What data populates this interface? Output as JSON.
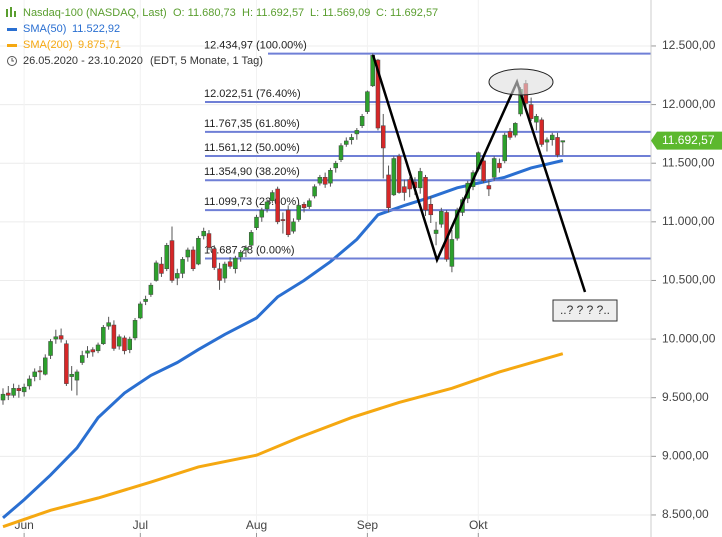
{
  "chart_data": {
    "type": "candlestick",
    "candle_name": "Nasdaq-100 (NASDAQ, Last)",
    "quote": [
      "O: 11.680,73",
      "H: 11.692,57",
      "L: 11.569,09",
      "C: 11.692,57"
    ],
    "period": "26.05.2020 - 23.10.2020",
    "period_note": "(EDT, 5 Monate, 1 Tag)",
    "up_color": "#2ca02c",
    "down_color": "#d62728",
    "x": [
      0,
      1,
      2,
      3,
      4,
      5,
      6,
      7,
      8,
      9,
      10,
      11,
      12,
      13,
      14,
      15,
      16,
      17,
      18,
      19,
      20,
      21,
      22,
      23,
      24,
      25,
      26,
      27,
      28,
      29,
      30,
      31,
      32,
      33,
      34,
      35,
      36,
      37,
      38,
      39,
      40,
      41,
      42,
      43,
      44,
      45,
      46,
      47,
      48,
      49,
      50,
      51,
      52,
      53,
      54,
      55,
      56,
      57,
      58,
      59,
      60,
      61,
      62,
      63,
      64,
      65,
      66,
      67,
      68,
      69,
      70,
      71,
      72,
      73,
      74,
      75,
      76,
      77,
      78,
      79,
      80,
      81,
      82,
      83,
      84,
      85,
      86,
      87,
      88,
      89,
      90,
      91,
      92,
      93,
      94,
      95,
      96,
      97,
      98,
      99,
      100,
      101,
      102,
      103,
      104,
      105,
      106
    ],
    "candles": [
      [
        9480,
        9580,
        9440,
        9530
      ],
      [
        9540,
        9600,
        9480,
        9520
      ],
      [
        9520,
        9620,
        9500,
        9580
      ],
      [
        9580,
        9610,
        9500,
        9560
      ],
      [
        9550,
        9620,
        9510,
        9590
      ],
      [
        9600,
        9690,
        9570,
        9660
      ],
      [
        9680,
        9750,
        9640,
        9720
      ],
      [
        9730,
        9770,
        9650,
        9720
      ],
      [
        9700,
        9870,
        9690,
        9840
      ],
      [
        9860,
        10000,
        9830,
        9980
      ],
      [
        10000,
        10080,
        9960,
        10020
      ],
      [
        10030,
        10090,
        9970,
        10000
      ],
      [
        9960,
        9990,
        9600,
        9620
      ],
      [
        9680,
        9770,
        9560,
        9700
      ],
      [
        9650,
        9740,
        9520,
        9720
      ],
      [
        9800,
        9900,
        9780,
        9860
      ],
      [
        9880,
        9940,
        9840,
        9900
      ],
      [
        9910,
        9930,
        9850,
        9890
      ],
      [
        9900,
        9970,
        9880,
        9950
      ],
      [
        9960,
        10120,
        9950,
        10100
      ],
      [
        10110,
        10190,
        10080,
        10140
      ],
      [
        10120,
        10160,
        9900,
        9920
      ],
      [
        9940,
        10040,
        9910,
        10020
      ],
      [
        10010,
        10030,
        9870,
        9900
      ],
      [
        9910,
        10020,
        9880,
        10000
      ],
      [
        10010,
        10180,
        9990,
        10160
      ],
      [
        10180,
        10320,
        10170,
        10300
      ],
      [
        10320,
        10370,
        10290,
        10340
      ],
      [
        10380,
        10480,
        10360,
        10460
      ],
      [
        10500,
        10670,
        10490,
        10650
      ],
      [
        10640,
        10700,
        10530,
        10560
      ],
      [
        10600,
        10820,
        10580,
        10800
      ],
      [
        10840,
        10960,
        10480,
        10500
      ],
      [
        10520,
        10600,
        10460,
        10560
      ],
      [
        10560,
        10700,
        10520,
        10680
      ],
      [
        10700,
        10780,
        10660,
        10760
      ],
      [
        10760,
        10790,
        10580,
        10600
      ],
      [
        10640,
        10880,
        10630,
        10860
      ],
      [
        10880,
        10950,
        10850,
        10920
      ],
      [
        10900,
        10930,
        10760,
        10780
      ],
      [
        10770,
        10800,
        10590,
        10610
      ],
      [
        10600,
        10650,
        10420,
        10500
      ],
      [
        10520,
        10660,
        10480,
        10640
      ],
      [
        10660,
        10700,
        10600,
        10620
      ],
      [
        10600,
        10710,
        10560,
        10690
      ],
      [
        10700,
        10760,
        10660,
        10740
      ],
      [
        10760,
        10800,
        10700,
        10780
      ],
      [
        10800,
        10930,
        10780,
        10910
      ],
      [
        10950,
        11060,
        10930,
        11040
      ],
      [
        11040,
        11120,
        11000,
        11100
      ],
      [
        11110,
        11190,
        11080,
        11170
      ],
      [
        11180,
        11270,
        11160,
        11250
      ],
      [
        11280,
        11300,
        10980,
        11000
      ],
      [
        11020,
        11080,
        10900,
        11010
      ],
      [
        11100,
        11140,
        10870,
        10890
      ],
      [
        10920,
        11030,
        10900,
        11000
      ],
      [
        11020,
        11160,
        11000,
        11140
      ],
      [
        11150,
        11170,
        11080,
        11120
      ],
      [
        11130,
        11200,
        11110,
        11180
      ],
      [
        11220,
        11320,
        11200,
        11300
      ],
      [
        11330,
        11400,
        11310,
        11380
      ],
      [
        11380,
        11420,
        11290,
        11320
      ],
      [
        11330,
        11460,
        11300,
        11440
      ],
      [
        11460,
        11520,
        11420,
        11500
      ],
      [
        11530,
        11670,
        11510,
        11650
      ],
      [
        11660,
        11720,
        11640,
        11690
      ],
      [
        11700,
        11750,
        11660,
        11720
      ],
      [
        11750,
        11800,
        11700,
        11780
      ],
      [
        11820,
        11920,
        11800,
        11900
      ],
      [
        11940,
        12120,
        11920,
        12110
      ],
      [
        12160,
        12435,
        12150,
        12420
      ],
      [
        12380,
        12390,
        11780,
        11800
      ],
      [
        11820,
        11920,
        11370,
        11630
      ],
      [
        11400,
        11480,
        11080,
        11120
      ],
      [
        11230,
        11560,
        11220,
        11540
      ],
      [
        11560,
        11580,
        11240,
        11250
      ],
      [
        11300,
        11360,
        11180,
        11250
      ],
      [
        11360,
        11380,
        11210,
        11280
      ],
      [
        11340,
        11380,
        11230,
        11290
      ],
      [
        11290,
        11460,
        11240,
        11430
      ],
      [
        11380,
        11400,
        11050,
        11100
      ],
      [
        11150,
        11220,
        10990,
        11060
      ],
      [
        10900,
        11000,
        10800,
        10930
      ],
      [
        10980,
        11120,
        10950,
        11090
      ],
      [
        11080,
        11100,
        10660,
        10680
      ],
      [
        10620,
        10930,
        10570,
        10850
      ],
      [
        10860,
        11120,
        10840,
        11100
      ],
      [
        11080,
        11210,
        11050,
        11190
      ],
      [
        11200,
        11350,
        11160,
        11330
      ],
      [
        11300,
        11440,
        11270,
        11420
      ],
      [
        11450,
        11600,
        11430,
        11590
      ],
      [
        11520,
        11560,
        11330,
        11350
      ],
      [
        11310,
        11360,
        11220,
        11280
      ],
      [
        11380,
        11560,
        11350,
        11540
      ],
      [
        11500,
        11540,
        11420,
        11460
      ],
      [
        11520,
        11760,
        11500,
        11740
      ],
      [
        11770,
        11800,
        11700,
        11720
      ],
      [
        11740,
        11850,
        11720,
        11840
      ],
      [
        11920,
        12150,
        11900,
        12130
      ],
      [
        12180,
        12210,
        11980,
        12010
      ],
      [
        12000,
        12060,
        11860,
        11880
      ],
      [
        11850,
        11920,
        11780,
        11900
      ],
      [
        11870,
        11890,
        11640,
        11660
      ],
      [
        11680,
        11720,
        11600,
        11700
      ],
      [
        11700,
        11760,
        11650,
        11740
      ],
      [
        11720,
        11760,
        11550,
        11570
      ],
      [
        11680.73,
        11692.57,
        11569.09,
        11692.57
      ]
    ],
    "series": [
      {
        "name": "SMA(50)",
        "color": "#2a6fd1",
        "last_label": "11.522,92",
        "x": [
          0,
          4,
          9,
          14,
          18,
          23,
          28,
          33,
          37,
          42,
          48,
          52,
          57,
          62,
          67,
          71,
          76,
          81,
          86,
          90,
          95,
          100,
          106
        ],
        "values": [
          8475,
          8630,
          8840,
          9070,
          9330,
          9540,
          9690,
          9800,
          9910,
          10040,
          10180,
          10360,
          10500,
          10660,
          10850,
          11060,
          11140,
          11210,
          11290,
          11330,
          11380,
          11460,
          11522.92
        ]
      },
      {
        "name": "SMA(200)",
        "color": "#f5a811",
        "last_label": "9.875,71",
        "x": [
          0,
          9,
          18,
          28,
          37,
          48,
          56,
          66,
          75,
          85,
          94,
          106
        ],
        "values": [
          8400,
          8540,
          8645,
          8780,
          8910,
          9010,
          9160,
          9330,
          9460,
          9580,
          9720,
          9875.71
        ]
      }
    ],
    "last_price": {
      "value": 11692.57,
      "label": "11.692,57"
    },
    "fib_levels": [
      {
        "value": 12434.97,
        "label": "12.434,97 (100.00%)"
      },
      {
        "value": 12022.51,
        "label": "12.022,51 (76.40%)"
      },
      {
        "value": 11767.35,
        "label": "11.767,35 (61.80%)"
      },
      {
        "value": 11561.12,
        "label": "11.561,12 (50.00%)"
      },
      {
        "value": 11354.9,
        "label": "11.354,90 (38.20%)"
      },
      {
        "value": 11099.73,
        "label": "11.099,73 (23.60%)"
      },
      {
        "value": 10687.28,
        "label": "10.687,28 (0.00%)"
      }
    ],
    "annotation": "..? ? ? ?..",
    "xlim": [
      -0.57,
      122.7
    ],
    "xticks": [
      {
        "value": 4,
        "label": "Jun"
      },
      {
        "value": 26,
        "label": "Jul"
      },
      {
        "value": 48,
        "label": "Aug"
      },
      {
        "value": 69,
        "label": "Sep"
      },
      {
        "value": 90,
        "label": "Okt"
      }
    ],
    "ylim": [
      8312,
      12892
    ],
    "yticks": [
      {
        "value": 8500,
        "label": "8.500,00"
      },
      {
        "value": 9000,
        "label": "9.000,00"
      },
      {
        "value": 9500,
        "label": "9.500,00"
      },
      {
        "value": 10000,
        "label": "10.000,00"
      },
      {
        "value": 10500,
        "label": "10.500,00"
      },
      {
        "value": 11000,
        "label": "11.000,00"
      },
      {
        "value": 11500,
        "label": "11.500,00"
      },
      {
        "value": 12000,
        "label": "12.000,00"
      },
      {
        "value": 12500,
        "label": "12.500,00"
      }
    ],
    "grid": true
  }
}
